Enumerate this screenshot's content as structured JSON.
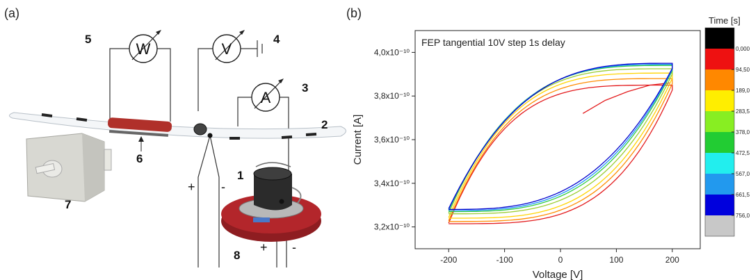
{
  "panels": {
    "a": "(a)",
    "b": "(b)"
  },
  "apparatus": {
    "meters": {
      "wattmeter": "W",
      "voltmeter": "V",
      "ammeter": "A"
    },
    "numbers": {
      "n1": "1",
      "n2": "2",
      "n3": "3",
      "n4": "4",
      "n5": "5",
      "n6": "6",
      "n7": "7",
      "n8": "8"
    },
    "polarity": {
      "plus": "+",
      "minus": "-"
    },
    "colors": {
      "tube_heater": "#b0302a",
      "motor_body": "#d6d6cf",
      "stage": "#a8262b",
      "cup": "#2b2b2b"
    }
  },
  "chart_data": {
    "type": "line",
    "title": "FEP tangential 10V step 1s delay",
    "xlabel": "Voltage [V]",
    "ylabel": "Current [A]",
    "xlim": [
      -260,
      250
    ],
    "ylim": [
      3.1e-10,
      4.1e-10
    ],
    "xticks": [
      -200,
      -100,
      0,
      100,
      200
    ],
    "xtick_labels": [
      "-200",
      "-100",
      "0",
      "100",
      "200"
    ],
    "yticks": [
      3.2e-10,
      3.4e-10,
      3.6e-10,
      3.8e-10,
      4e-10
    ],
    "ytick_labels": [
      "3,2x10⁻¹⁰",
      "3,4x10⁻¹⁰",
      "3,6x10⁻¹⁰",
      "3,8x10⁻¹⁰",
      "4,0x10⁻¹⁰"
    ],
    "grid": false,
    "colorbar": {
      "title": "Time [s]",
      "labels": [
        "0,000",
        "94,50",
        "189,0",
        "283,5",
        "378,0",
        "472,5",
        "567,0",
        "661,5",
        "756,0"
      ],
      "colors": [
        "#000000",
        "#ee1111",
        "#ff8800",
        "#ffee00",
        "#88ee22",
        "#22cc33",
        "#22eeee",
        "#2299ee",
        "#0000dd",
        "#c8c8c8"
      ]
    },
    "series": [
      {
        "color": "#e31a1c",
        "loop": {
          "i_low": 3.205e-10,
          "i_high": 3.85e-10,
          "offset": 0.4
        },
        "start": [
          [
            40,
            3.72e-10
          ],
          [
            80,
            3.78e-10
          ],
          [
            120,
            3.82e-10
          ],
          [
            160,
            3.85e-10
          ],
          [
            195,
            3.86e-10
          ]
        ]
      },
      {
        "color": "#ff8c00",
        "loop": {
          "i_low": 3.215e-10,
          "i_high": 3.88e-10,
          "offset": 0.3
        }
      },
      {
        "color": "#ffd400",
        "loop": {
          "i_low": 3.23e-10,
          "i_high": 3.905e-10,
          "offset": 0.25
        }
      },
      {
        "color": "#9acd32",
        "loop": {
          "i_low": 3.25e-10,
          "i_high": 3.925e-10,
          "offset": 0.18
        }
      },
      {
        "color": "#2ecc40",
        "loop": {
          "i_low": 3.26e-10,
          "i_high": 3.94e-10,
          "offset": 0.1
        }
      },
      {
        "color": "#1e90ff",
        "loop": {
          "i_low": 3.265e-10,
          "i_high": 3.945e-10,
          "offset": 0.05
        }
      },
      {
        "color": "#0000cc",
        "loop": {
          "i_low": 3.27e-10,
          "i_high": 3.95e-10,
          "offset": 0.0
        }
      }
    ]
  }
}
